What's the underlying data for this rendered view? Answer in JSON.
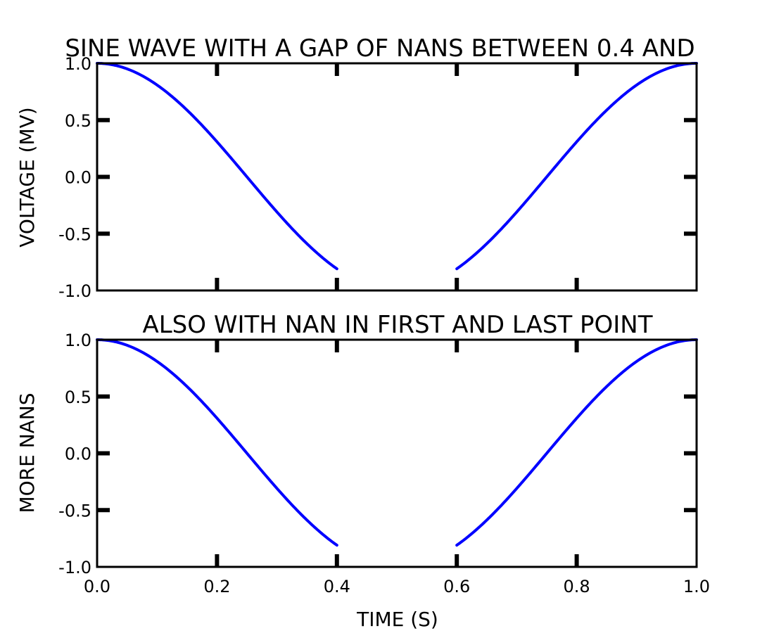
{
  "chart_data": [
    {
      "type": "line",
      "title": "SINE WAVE WITH A GAP OF NANS BETWEEN 0.4 AND",
      "xlabel": "",
      "ylabel": "VOLTAGE (MV)",
      "xlim": [
        0.0,
        1.0
      ],
      "ylim": [
        -1.0,
        1.0
      ],
      "x_ticks": [
        "0.0",
        "0.2",
        "0.4",
        "0.6",
        "0.8",
        "1.0"
      ],
      "x_tick_labels_shown": false,
      "y_ticks": [
        "-1.0",
        "-0.5",
        "0.0",
        "0.5",
        "1.0"
      ],
      "y_tick_values": [
        -1.0,
        -0.5,
        0.0,
        0.5,
        1.0
      ],
      "x_tick_values": [
        0.0,
        0.2,
        0.4,
        0.6,
        0.8,
        1.0
      ],
      "grid": false,
      "series": [
        {
          "color": "#0000ff",
          "function": "cos(2*pi*x)",
          "x_start": 0.0,
          "x_end": 1.0,
          "nan_ranges": [
            [
              0.4,
              0.6
            ]
          ]
        }
      ]
    },
    {
      "type": "line",
      "title": "ALSO WITH NAN IN FIRST AND LAST POINT",
      "xlabel": "TIME (S)",
      "ylabel": "MORE NANS",
      "xlim": [
        0.0,
        1.0
      ],
      "ylim": [
        -1.0,
        1.0
      ],
      "x_ticks": [
        "0.0",
        "0.2",
        "0.4",
        "0.6",
        "0.8",
        "1.0"
      ],
      "x_tick_labels_shown": true,
      "y_ticks": [
        "-1.0",
        "-0.5",
        "0.0",
        "0.5",
        "1.0"
      ],
      "y_tick_values": [
        -1.0,
        -0.5,
        0.0,
        0.5,
        1.0
      ],
      "x_tick_values": [
        0.0,
        0.2,
        0.4,
        0.6,
        0.8,
        1.0
      ],
      "grid": false,
      "series": [
        {
          "color": "#0000ff",
          "function": "cos(2*pi*x)",
          "x_start": 0.0,
          "x_end": 1.0,
          "nan_ranges": [
            [
              0.4,
              0.6
            ]
          ]
        }
      ]
    }
  ]
}
